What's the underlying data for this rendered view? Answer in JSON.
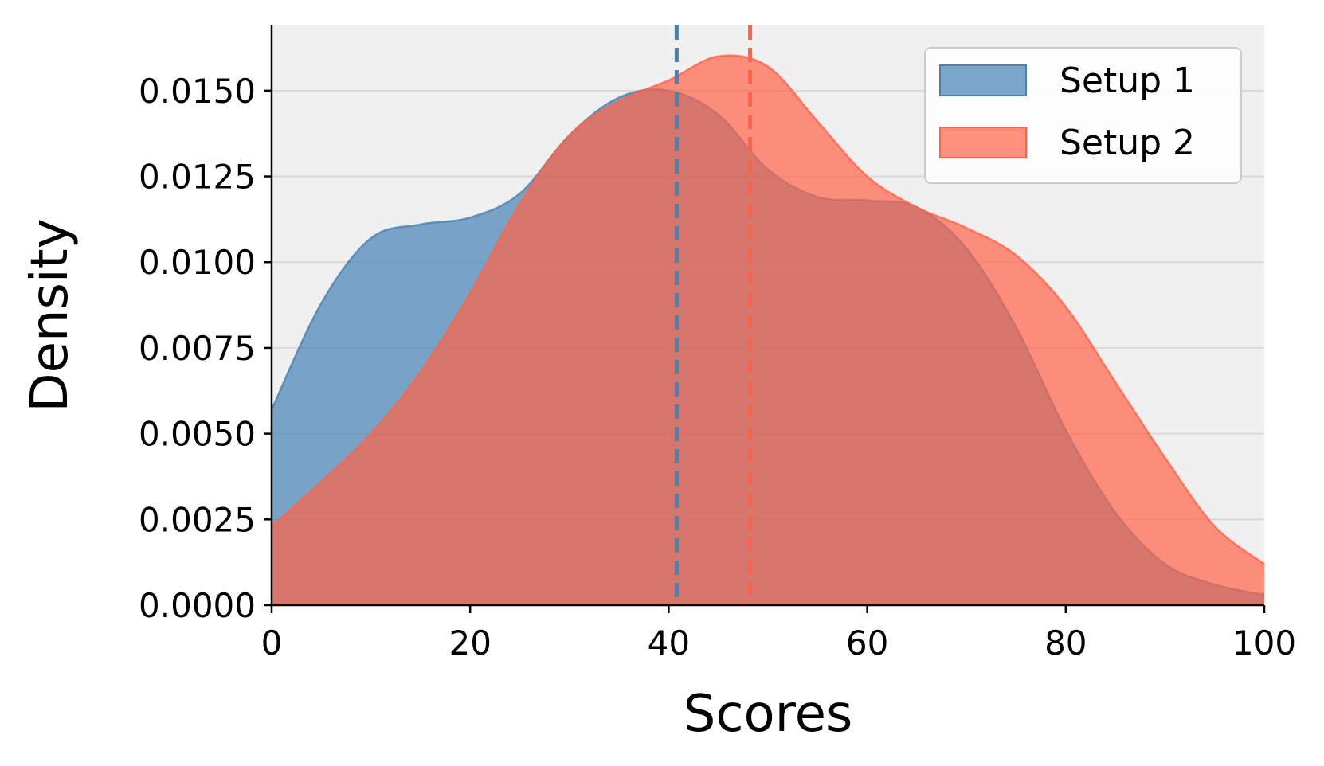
{
  "chart_data": {
    "type": "area",
    "title": "",
    "xlabel": "Scores",
    "ylabel": "Density",
    "xlim": [
      0,
      100
    ],
    "ylim": [
      0,
      0.0169
    ],
    "xticks": [
      0,
      20,
      40,
      60,
      80,
      100
    ],
    "xtick_labels": [
      "0",
      "20",
      "40",
      "60",
      "80",
      "100"
    ],
    "yticks": [
      0,
      0.0025,
      0.005,
      0.0075,
      0.01,
      0.0125,
      0.015
    ],
    "ytick_labels": [
      "0.0000",
      "0.0025",
      "0.0050",
      "0.0075",
      "0.0100",
      "0.0125",
      "0.0150"
    ],
    "grid": "horizontal",
    "legend_position": "top-right",
    "series": [
      {
        "name": "Setup 1",
        "color": "#4682B4",
        "mean": 40.8,
        "x": [
          0,
          5,
          10,
          15,
          20,
          25,
          30,
          35,
          40,
          45,
          50,
          55,
          60,
          65,
          70,
          75,
          80,
          85,
          90,
          95,
          100
        ],
        "values": [
          0.0057,
          0.0088,
          0.0107,
          0.0111,
          0.0113,
          0.012,
          0.0137,
          0.0148,
          0.015,
          0.0143,
          0.0127,
          0.0119,
          0.0118,
          0.0116,
          0.0104,
          0.0081,
          0.0051,
          0.0027,
          0.0012,
          0.0006,
          0.0003
        ]
      },
      {
        "name": "Setup 2",
        "color": "#FF6347",
        "mean": 48.2,
        "x": [
          0,
          5,
          10,
          15,
          20,
          25,
          30,
          35,
          40,
          45,
          50,
          55,
          60,
          65,
          70,
          75,
          80,
          85,
          90,
          95,
          100
        ],
        "values": [
          0.0023,
          0.0036,
          0.005,
          0.0068,
          0.0091,
          0.0117,
          0.0137,
          0.0147,
          0.0153,
          0.016,
          0.0157,
          0.0141,
          0.0125,
          0.0116,
          0.011,
          0.0102,
          0.0087,
          0.0065,
          0.0043,
          0.0023,
          0.0012
        ]
      }
    ]
  }
}
